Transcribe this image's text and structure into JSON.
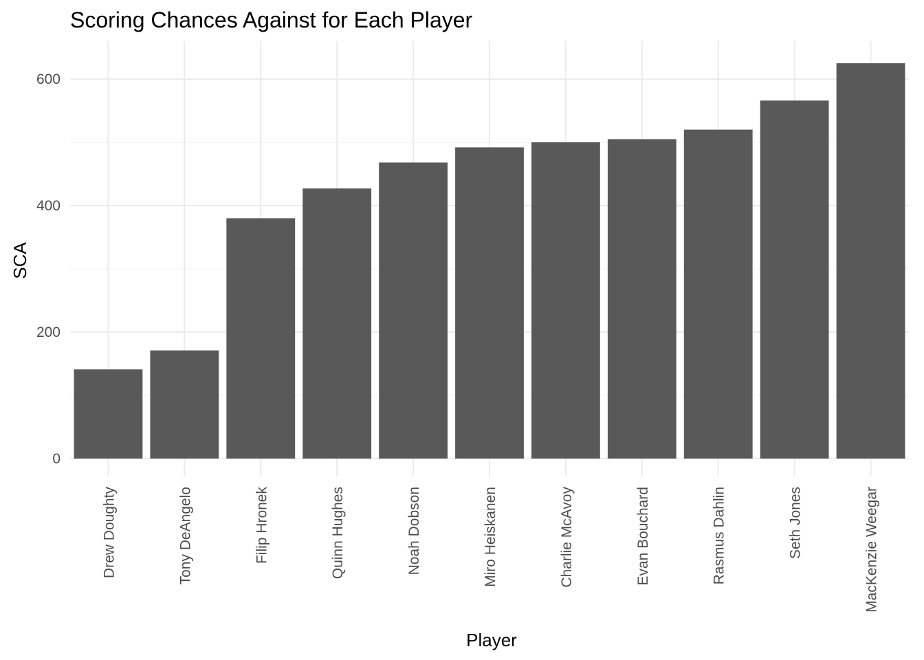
{
  "chart_data": {
    "type": "bar",
    "title": "Scoring Chances Against for Each Player",
    "xlabel": "Player",
    "ylabel": "SCA",
    "categories": [
      "Drew Doughty",
      "Tony DeAngelo",
      "Filip Hronek",
      "Quinn Hughes",
      "Noah Dobson",
      "Miro Heiskanen",
      "Charlie McAvoy",
      "Evan Bouchard",
      "Rasmus Dahlin",
      "Seth Jones",
      "MacKenzie Weegar"
    ],
    "values": [
      141,
      171,
      380,
      427,
      468,
      492,
      500,
      505,
      520,
      566,
      625
    ],
    "ylim": [
      0,
      656
    ],
    "yticks": [
      0,
      200,
      400,
      600
    ],
    "ytick_labels": [
      "0",
      "200",
      "400",
      "600"
    ],
    "grid": true,
    "bar_color": "#595959"
  }
}
